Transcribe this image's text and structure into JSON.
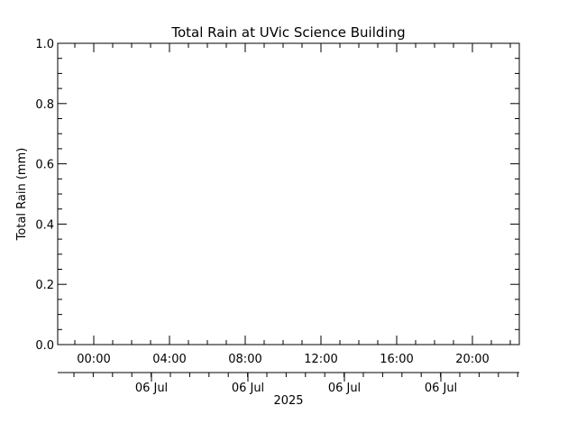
{
  "chart_data": {
    "type": "line",
    "title": "Total Rain at UVic Science Building",
    "ylabel": "Total Rain (mm)",
    "ylim": [
      0.0,
      1.0
    ],
    "yticks": [
      "0.0",
      "0.2",
      "0.4",
      "0.6",
      "0.8",
      "1.0"
    ],
    "xticks": [
      "00:00",
      "04:00",
      "08:00",
      "12:00",
      "16:00",
      "20:00"
    ],
    "date_ticks": [
      "06 Jul",
      "06 Jul",
      "06 Jul",
      "06 Jul"
    ],
    "year_label": "2025",
    "series": []
  }
}
